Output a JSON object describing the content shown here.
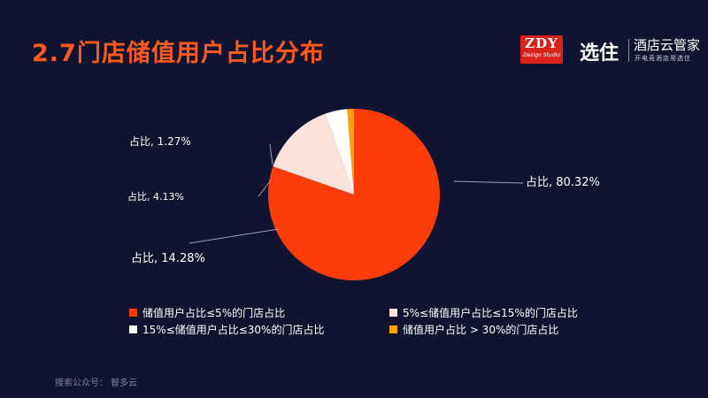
{
  "title": "2.7门店储值用户占比分布",
  "logos": {
    "zdy_main": "ZDY",
    "zdy_sub": "Design Studio",
    "brand_mark": "选住",
    "brand_name": "酒店云管家",
    "brand_slogan": "开电竞酒店用选住"
  },
  "footer": "搜索公众号： 智多云",
  "colors": {
    "background": "#101431",
    "title": "#ff5a1f"
  },
  "chart_data": {
    "type": "pie",
    "title": "",
    "slices": [
      {
        "legend": "储值用户占比≤5%的门店占比",
        "label": "占比, 80.32%",
        "value": 80.32,
        "color": "#fc3d0a"
      },
      {
        "legend": "5%≤储值用户占比≤15%的门店占比",
        "label": "占比, 14.28%",
        "value": 14.28,
        "color": "#fbe3dc"
      },
      {
        "legend": "15%≤储值用户占比≤30%的门店占比",
        "label": "占比, 4.13%",
        "value": 4.13,
        "color": "#ffffff"
      },
      {
        "legend": "储值用户占比 > 30%的门店占比",
        "label": "占比, 1.27%",
        "value": 1.27,
        "color": "#ffa200"
      }
    ],
    "start_angle_deg": 0,
    "direction": "clockwise",
    "legend_position": "bottom"
  }
}
